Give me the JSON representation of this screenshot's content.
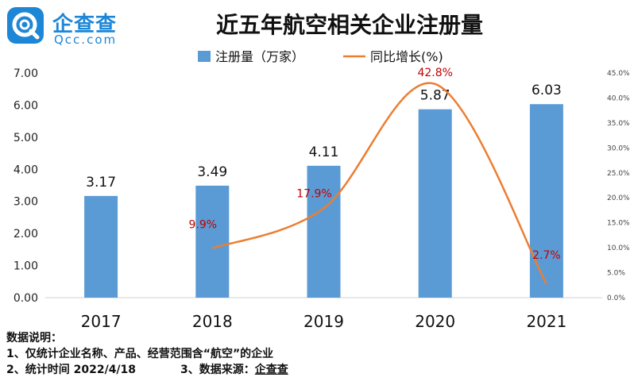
{
  "header": {
    "logo_cn": "企查查",
    "logo_en": "Qcc.com",
    "title": "近五年航空相关企业注册量"
  },
  "chart_data": {
    "type": "bar",
    "categories": [
      "2017",
      "2018",
      "2019",
      "2020",
      "2021"
    ],
    "series": [
      {
        "name": "注册量（万家）",
        "type": "bar",
        "axis": "left",
        "values": [
          3.17,
          3.49,
          4.11,
          5.87,
          6.03
        ],
        "color": "#5b9bd5"
      },
      {
        "name": "同比增长(%)",
        "type": "line",
        "axis": "right",
        "values": [
          null,
          9.9,
          17.9,
          42.8,
          2.7
        ],
        "color": "#ed7d31"
      }
    ],
    "bar_labels": [
      "3.17",
      "3.49",
      "4.11",
      "5.87",
      "6.03"
    ],
    "line_labels": [
      "",
      "9.9%",
      "17.9%",
      "42.8%",
      "2.7%"
    ],
    "line_label_color": "#c00000",
    "left_axis": {
      "min": 0,
      "max": 7,
      "ticks": [
        "0.00",
        "1.00",
        "2.00",
        "3.00",
        "4.00",
        "5.00",
        "6.00",
        "7.00"
      ]
    },
    "right_axis": {
      "min": 0,
      "max": 45,
      "ticks": [
        "0.0%",
        "5.0%",
        "10.0%",
        "15.0%",
        "20.0%",
        "25.0%",
        "30.0%",
        "35.0%",
        "40.0%",
        "45.0%"
      ]
    },
    "legend_position": "top-center",
    "grid": false
  },
  "notes": {
    "heading": "数据说明：",
    "line1": "1、仅统计企业名称、产品、经营范围含“航空”的企业",
    "line2a": "2、统计时间 2022/4/18",
    "line2b": "3、数据来源：",
    "line2c": "企查查"
  },
  "colors": {
    "brand": "#1d86d6"
  }
}
